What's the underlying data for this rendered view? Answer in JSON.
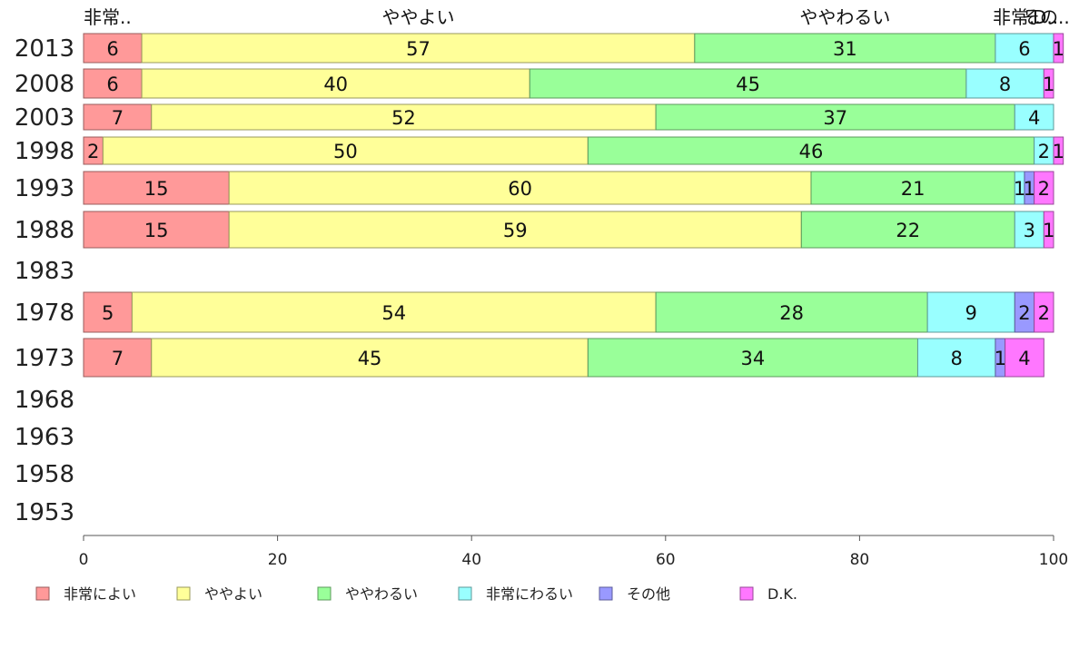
{
  "chart_data": {
    "type": "bar",
    "orientation": "horizontal",
    "stacked": true,
    "categories": [
      "2013",
      "2008",
      "2003",
      "1998",
      "1993",
      "1988",
      "1983",
      "1978",
      "1973",
      "1968",
      "1963",
      "1958",
      "1953"
    ],
    "series": [
      {
        "name": "非常によい",
        "color": "#ff9999",
        "values": [
          6,
          6,
          7,
          2,
          15,
          15,
          null,
          5,
          7,
          null,
          null,
          null,
          null
        ]
      },
      {
        "name": "ややよい",
        "color": "#ffff99",
        "values": [
          57,
          40,
          52,
          50,
          60,
          59,
          null,
          54,
          45,
          null,
          null,
          null,
          null
        ]
      },
      {
        "name": "ややわるい",
        "color": "#99ff99",
        "values": [
          31,
          45,
          37,
          46,
          21,
          22,
          null,
          28,
          34,
          null,
          null,
          null,
          null
        ]
      },
      {
        "name": "非常にわるい",
        "color": "#99ffff",
        "values": [
          6,
          8,
          4,
          2,
          1,
          3,
          null,
          9,
          8,
          null,
          null,
          null,
          null
        ]
      },
      {
        "name": "その他",
        "color": "#9999ff",
        "values": [
          0,
          0,
          0,
          0,
          1,
          0,
          null,
          2,
          1,
          null,
          null,
          null,
          null
        ]
      },
      {
        "name": "D.K.",
        "color": "#ff77ff",
        "values": [
          1,
          1,
          0,
          1,
          2,
          1,
          null,
          2,
          4,
          null,
          null,
          null,
          null
        ]
      }
    ],
    "top_labels": [
      "非常..",
      "ややよい",
      "ややわるい",
      "非常..",
      "その..",
      "D.."
    ],
    "xlim": [
      0,
      100
    ],
    "xticks": [
      0,
      20,
      40,
      60,
      80,
      100
    ],
    "legend_position": "bottom",
    "grid": false
  }
}
